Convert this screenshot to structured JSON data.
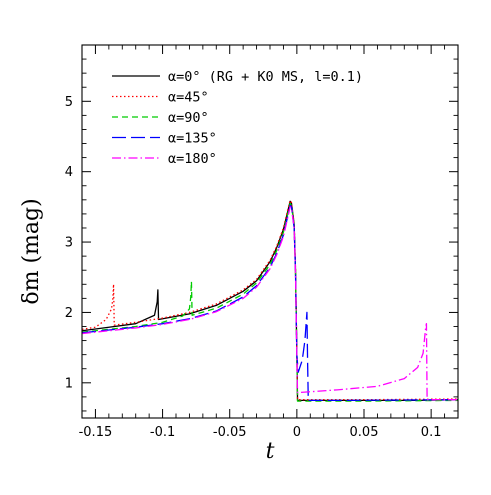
{
  "chart_data": {
    "type": "line",
    "xlabel": "t",
    "ylabel": "δm (mag)",
    "xlim": [
      -0.16,
      0.12
    ],
    "ylim": [
      0.5,
      5.8
    ],
    "x_ticks": [
      "-0.15",
      "-0.1",
      "-0.05",
      "0",
      "0.05",
      "0.1"
    ],
    "y_ticks": [
      "1",
      "2",
      "3",
      "4",
      "5"
    ],
    "grid": false,
    "legend_position": "top-left",
    "series": [
      {
        "name": "α=0° (RG + K0 MS, l=0.1)",
        "color": "#000000",
        "dash": "solid",
        "x": [
          -0.16,
          -0.14,
          -0.12,
          -0.106,
          -0.104,
          -0.1035,
          -0.103,
          -0.08,
          -0.06,
          -0.04,
          -0.03,
          -0.02,
          -0.015,
          -0.01,
          -0.007,
          -0.005,
          -0.004,
          -0.002,
          -0.001,
          0.0,
          0.0005,
          0.005,
          0.05,
          0.09,
          0.12
        ],
        "y": [
          1.74,
          1.79,
          1.84,
          1.96,
          2.15,
          2.32,
          1.9,
          1.98,
          2.1,
          2.3,
          2.45,
          2.72,
          2.92,
          3.18,
          3.42,
          3.58,
          3.55,
          3.25,
          2.6,
          1.4,
          0.75,
          0.75,
          0.75,
          0.75,
          0.76
        ]
      },
      {
        "name": "α=45°",
        "color": "#ff0000",
        "dash": "dotted",
        "x": [
          -0.16,
          -0.15,
          -0.142,
          -0.138,
          -0.137,
          -0.1365,
          -0.136,
          -0.12,
          -0.1,
          -0.08,
          -0.06,
          -0.04,
          -0.03,
          -0.02,
          -0.015,
          -0.01,
          -0.007,
          -0.005,
          -0.004,
          -0.002,
          -0.001,
          0.0,
          0.0005,
          0.05,
          0.12
        ],
        "y": [
          1.76,
          1.79,
          1.9,
          2.05,
          2.2,
          2.4,
          1.82,
          1.86,
          1.92,
          2.0,
          2.12,
          2.32,
          2.47,
          2.74,
          2.94,
          3.2,
          3.44,
          3.59,
          3.56,
          3.26,
          2.62,
          1.42,
          0.76,
          0.76,
          0.77
        ]
      },
      {
        "name": "α=90°",
        "color": "#00cc00",
        "dash": "dashed",
        "x": [
          -0.16,
          -0.14,
          -0.12,
          -0.1,
          -0.085,
          -0.08,
          -0.079,
          -0.0785,
          -0.078,
          -0.06,
          -0.04,
          -0.03,
          -0.02,
          -0.015,
          -0.01,
          -0.007,
          -0.005,
          -0.004,
          -0.002,
          -0.001,
          0.0,
          0.0005,
          0.05,
          0.12
        ],
        "y": [
          1.72,
          1.76,
          1.8,
          1.86,
          1.95,
          2.05,
          2.22,
          2.44,
          1.96,
          2.06,
          2.26,
          2.42,
          2.68,
          2.88,
          3.14,
          3.38,
          3.55,
          3.52,
          3.22,
          2.58,
          1.38,
          0.74,
          0.74,
          0.75
        ]
      },
      {
        "name": "α=135°",
        "color": "#0000ff",
        "dash": "longdash",
        "x": [
          -0.16,
          -0.14,
          -0.12,
          -0.1,
          -0.08,
          -0.06,
          -0.04,
          -0.03,
          -0.02,
          -0.015,
          -0.01,
          -0.007,
          -0.005,
          -0.004,
          -0.002,
          -0.001,
          0.0,
          0.001,
          0.004,
          0.006,
          0.0075,
          0.008,
          0.0085,
          0.03,
          0.12
        ],
        "y": [
          1.71,
          1.75,
          1.79,
          1.84,
          1.91,
          2.02,
          2.22,
          2.38,
          2.64,
          2.84,
          3.1,
          3.35,
          3.52,
          3.5,
          3.2,
          2.56,
          1.4,
          1.15,
          1.32,
          1.6,
          2.0,
          1.3,
          0.75,
          0.75,
          0.76
        ]
      },
      {
        "name": "α=180°",
        "color": "#ff00ff",
        "dash": "dashdot",
        "x": [
          -0.16,
          -0.14,
          -0.12,
          -0.1,
          -0.08,
          -0.06,
          -0.04,
          -0.03,
          -0.02,
          -0.015,
          -0.01,
          -0.007,
          -0.005,
          -0.004,
          -0.002,
          -0.001,
          0.0,
          0.0005,
          0.03,
          0.06,
          0.08,
          0.09,
          0.094,
          0.096,
          0.0965,
          0.097,
          0.12
        ],
        "y": [
          1.7,
          1.74,
          1.78,
          1.83,
          1.9,
          2.01,
          2.2,
          2.36,
          2.62,
          2.82,
          3.08,
          3.33,
          3.5,
          3.48,
          3.19,
          2.55,
          1.36,
          0.86,
          0.9,
          0.95,
          1.06,
          1.22,
          1.42,
          1.8,
          1.84,
          0.76,
          0.76
        ]
      }
    ]
  }
}
